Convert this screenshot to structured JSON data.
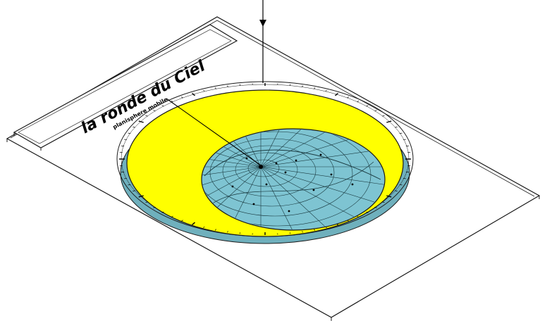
{
  "diagram": {
    "title": "la ronde du Ciel",
    "subtitle": "planisphere mobile",
    "colors": {
      "board_stroke": "#1a1a1a",
      "outer_disk": "#ffff00",
      "sky_disk": "#7ec4d2",
      "sky_grid": "#1a3a40",
      "ink": "#000000"
    }
  }
}
